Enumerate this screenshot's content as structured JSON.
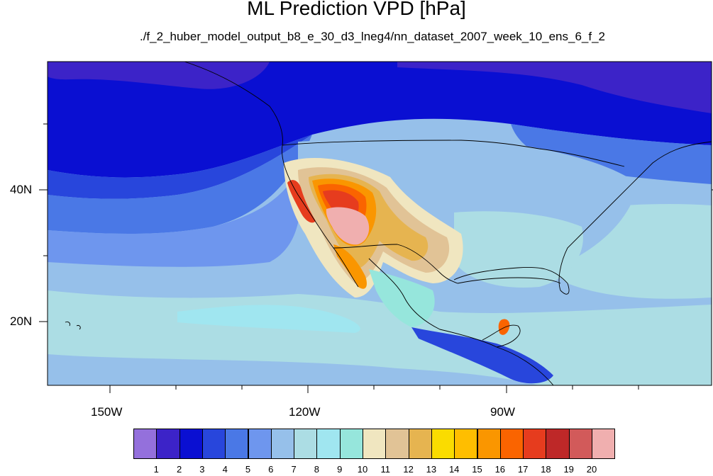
{
  "title": "ML Prediction VPD [hPa]",
  "subtitle": "./f_2_huber_model_output_b8_e_30_d3_lneg4/nn_dataset_2007_week_10_ens_6_f_2",
  "map": {
    "projection": "cylindrical-equidistant",
    "lon_range": [
      -160,
      -60
    ],
    "lat_range": [
      10,
      59
    ]
  },
  "lat_labels": [
    "40N",
    "20N"
  ],
  "lon_labels": [
    "150W",
    "120W",
    "90W"
  ],
  "colorbar": {
    "labels": [
      "1",
      "2",
      "3",
      "4",
      "5",
      "6",
      "7",
      "8",
      "9",
      "10",
      "11",
      "12",
      "13",
      "14",
      "15",
      "16",
      "17",
      "18",
      "19",
      "20"
    ],
    "colors": [
      "#9470dc",
      "#3c23c8",
      "#0a0fd2",
      "#2846dc",
      "#4a78e6",
      "#6e96ee",
      "#96c0ea",
      "#acdde4",
      "#a0e6f0",
      "#96e6dc",
      "#f0e6c0",
      "#e1c396",
      "#e6b450",
      "#fadc00",
      "#ffbe00",
      "#fa9600",
      "#fa6400",
      "#e63c1e",
      "#be2828",
      "#d25a5a",
      "#f0afaf"
    ]
  }
}
